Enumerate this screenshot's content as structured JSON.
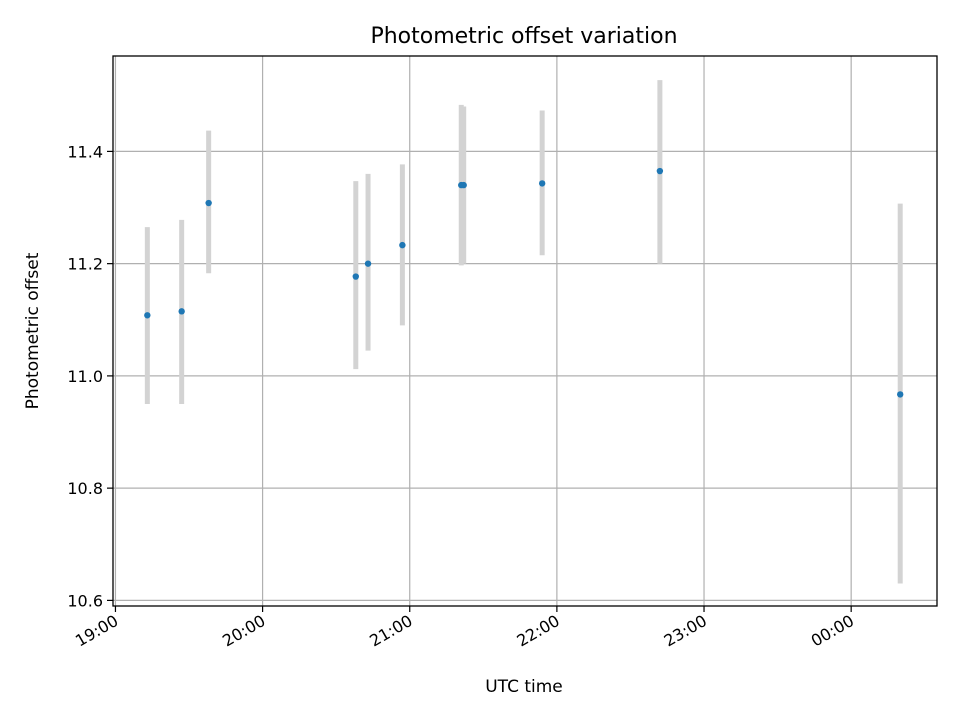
{
  "chart_data": {
    "type": "scatter",
    "title": "Photometric offset variation",
    "xlabel": "UTC time",
    "ylabel": "Photometric offset",
    "x_unit": "UTC time (hh:mm)",
    "xlim": [
      "18:59",
      "00:35"
    ],
    "ylim": [
      10.59,
      11.57
    ],
    "x_ticks": [
      "19:00",
      "20:00",
      "21:00",
      "22:00",
      "23:00",
      "00:00"
    ],
    "y_ticks": [
      10.6,
      10.8,
      11.0,
      11.2,
      11.4
    ],
    "y_tick_labels": [
      "10.6",
      "10.8",
      "11.0",
      "11.2",
      "11.4"
    ],
    "grid": true,
    "legend": "none",
    "points": [
      {
        "x": "19:13",
        "y": 11.108,
        "err_low": 10.95,
        "err_high": 11.265
      },
      {
        "x": "19:27",
        "y": 11.115,
        "err_low": 10.95,
        "err_high": 11.278
      },
      {
        "x": "19:38",
        "y": 11.308,
        "err_low": 11.183,
        "err_high": 11.437
      },
      {
        "x": "20:38",
        "y": 11.177,
        "err_low": 11.012,
        "err_high": 11.347
      },
      {
        "x": "20:43",
        "y": 11.2,
        "err_low": 11.045,
        "err_high": 11.36
      },
      {
        "x": "20:57",
        "y": 11.233,
        "err_low": 11.09,
        "err_high": 11.377
      },
      {
        "x": "21:21",
        "y": 11.34,
        "err_low": 11.197,
        "err_high": 11.483
      },
      {
        "x": "21:22",
        "y": 11.34,
        "err_low": 11.2,
        "err_high": 11.48
      },
      {
        "x": "21:54",
        "y": 11.343,
        "err_low": 11.215,
        "err_high": 11.473
      },
      {
        "x": "22:42",
        "y": 11.365,
        "err_low": 11.2,
        "err_high": 11.527
      },
      {
        "x": "00:20",
        "y": 10.967,
        "err_low": 10.63,
        "err_high": 11.307
      }
    ],
    "colors": {
      "marker": "#1f77b4",
      "errorbar": "#d3d3d3",
      "grid": "#b0b0b0"
    }
  }
}
